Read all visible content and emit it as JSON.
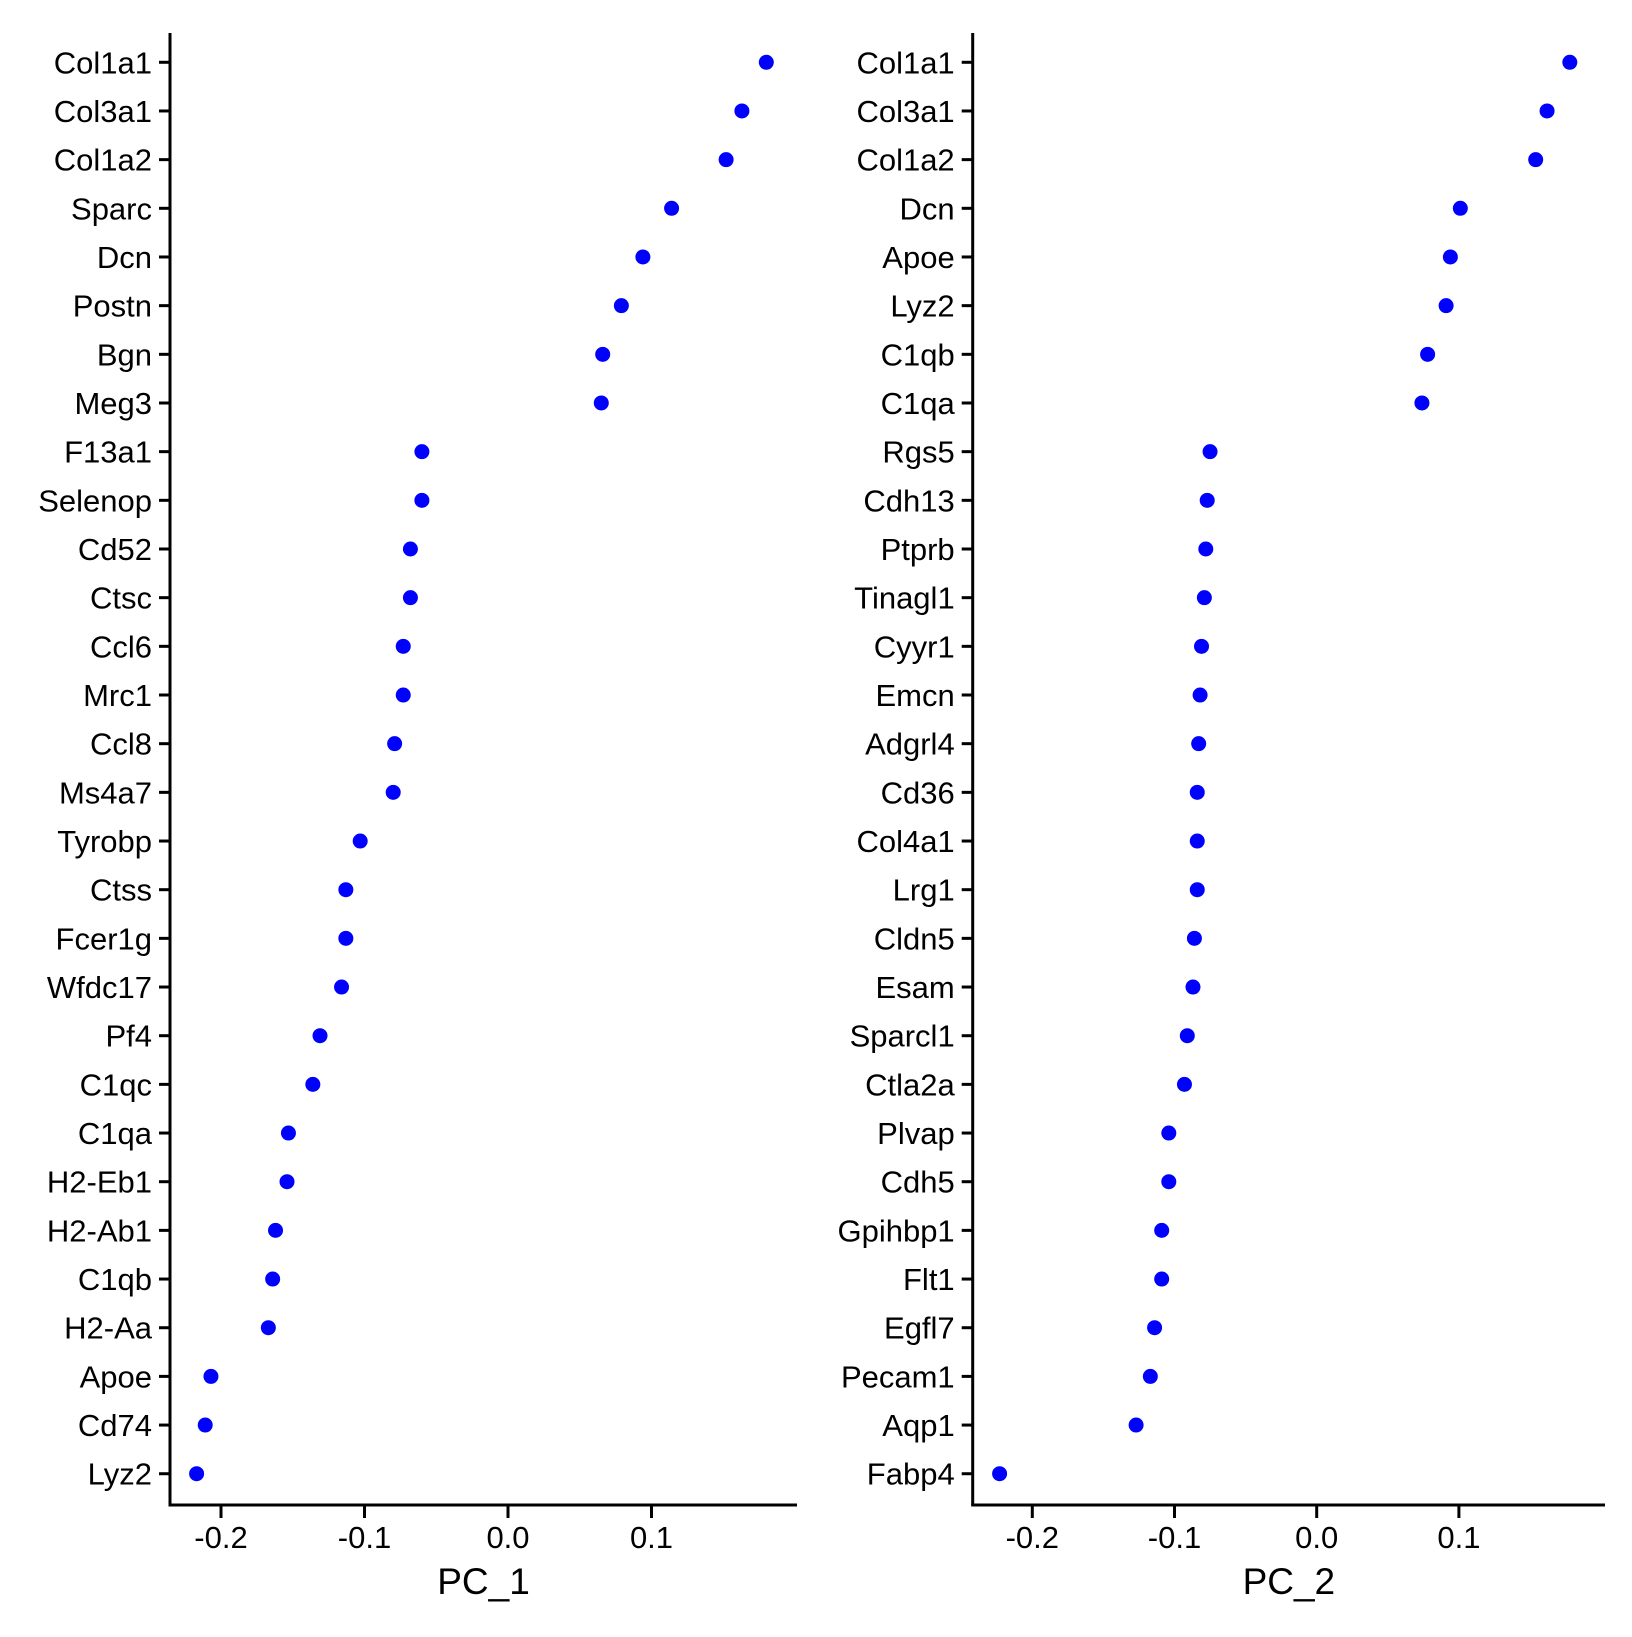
{
  "figure": {
    "background": "#ffffff",
    "dot_color": "#0000ff",
    "axis_color": "#000000"
  },
  "chart_data": [
    {
      "type": "scatter",
      "title": "",
      "xlabel": "PC_1",
      "ylabel": "",
      "x_ticks": [
        -0.2,
        -0.1,
        0.0,
        0.1
      ],
      "xlim": [
        -0.236,
        0.201
      ],
      "grid": false,
      "legend": "none",
      "categories": [
        "Col1a1",
        "Col3a1",
        "Col1a2",
        "Sparc",
        "Dcn",
        "Postn",
        "Bgn",
        "Meg3",
        "F13a1",
        "Selenop",
        "Cd52",
        "Ctsc",
        "Ccl6",
        "Mrc1",
        "Ccl8",
        "Ms4a7",
        "Tyrobp",
        "Ctss",
        "Fcer1g",
        "Wfdc17",
        "Pf4",
        "C1qc",
        "C1qa",
        "H2-Eb1",
        "H2-Ab1",
        "C1qb",
        "H2-Aa",
        "Apoe",
        "Cd74",
        "Lyz2"
      ],
      "values": [
        0.18,
        0.163,
        0.152,
        0.114,
        0.094,
        0.079,
        0.066,
        0.065,
        -0.06,
        -0.06,
        -0.068,
        -0.068,
        -0.073,
        -0.073,
        -0.079,
        -0.08,
        -0.103,
        -0.113,
        -0.113,
        -0.116,
        -0.131,
        -0.136,
        -0.153,
        -0.154,
        -0.162,
        -0.164,
        -0.167,
        -0.207,
        -0.211,
        -0.217
      ]
    },
    {
      "type": "scatter",
      "title": "",
      "xlabel": "PC_2",
      "ylabel": "",
      "x_ticks": [
        -0.2,
        -0.1,
        0.0,
        0.1
      ],
      "xlim": [
        -0.242,
        0.203
      ],
      "grid": false,
      "legend": "none",
      "categories": [
        "Col1a1",
        "Col3a1",
        "Col1a2",
        "Dcn",
        "Apoe",
        "Lyz2",
        "C1qb",
        "C1qa",
        "Rgs5",
        "Cdh13",
        "Ptprb",
        "Tinagl1",
        "Cyyr1",
        "Emcn",
        "Adgrl4",
        "Cd36",
        "Col4a1",
        "Lrg1",
        "Cldn5",
        "Esam",
        "Sparcl1",
        "Ctla2a",
        "Plvap",
        "Cdh5",
        "Gpihbp1",
        "Flt1",
        "Egfl7",
        "Pecam1",
        "Aqp1",
        "Fabp4"
      ],
      "values": [
        0.178,
        0.162,
        0.154,
        0.101,
        0.094,
        0.091,
        0.078,
        0.074,
        -0.075,
        -0.077,
        -0.078,
        -0.079,
        -0.081,
        -0.082,
        -0.083,
        -0.084,
        -0.084,
        -0.084,
        -0.086,
        -0.087,
        -0.091,
        -0.093,
        -0.104,
        -0.104,
        -0.109,
        -0.109,
        -0.114,
        -0.117,
        -0.127,
        -0.223
      ]
    }
  ]
}
